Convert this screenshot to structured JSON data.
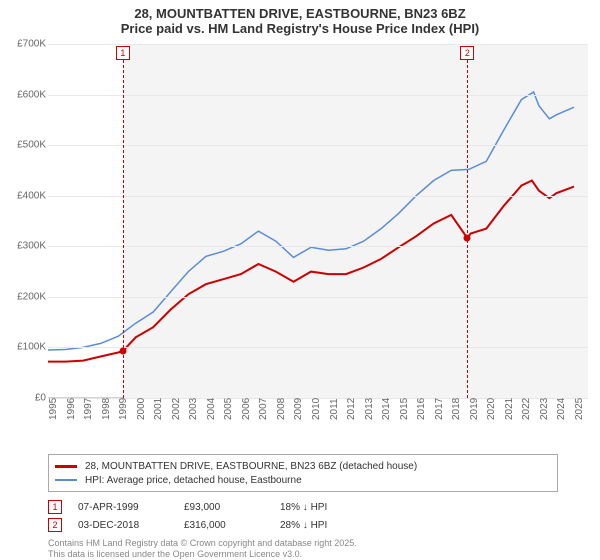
{
  "title_line1": "28, MOUNTBATTEN DRIVE, EASTBOURNE, BN23 6BZ",
  "title_line2": "Price paid vs. HM Land Registry's House Price Index (HPI)",
  "chart": {
    "type": "line",
    "background_color": "#ffffff",
    "index_band_color": "#f4f4f4",
    "grid_color": "#e8e8e8",
    "x_range": [
      1995,
      2025.8
    ],
    "x_ticks": [
      1995,
      1996,
      1997,
      1998,
      1999,
      2000,
      2001,
      2002,
      2003,
      2004,
      2005,
      2006,
      2007,
      2008,
      2009,
      2010,
      2011,
      2012,
      2013,
      2014,
      2015,
      2016,
      2017,
      2018,
      2019,
      2020,
      2021,
      2022,
      2023,
      2024,
      2025
    ],
    "ylim": [
      0,
      700
    ],
    "y_ticks": [
      0,
      100,
      200,
      300,
      400,
      500,
      600,
      700
    ],
    "y_tick_labels": [
      "£0",
      "£100K",
      "£200K",
      "£300K",
      "£400K",
      "£500K",
      "£600K",
      "£700K"
    ],
    "index_band_start": 1999.27,
    "price_paid": {
      "color": "#cc0000",
      "line_width": 2,
      "data": [
        [
          1995,
          72
        ],
        [
          1996,
          72
        ],
        [
          1997,
          74
        ],
        [
          1998,
          82
        ],
        [
          1999,
          90
        ],
        [
          1999.27,
          93
        ],
        [
          2000,
          120
        ],
        [
          2001,
          140
        ],
        [
          2002,
          175
        ],
        [
          2003,
          205
        ],
        [
          2004,
          225
        ],
        [
          2005,
          235
        ],
        [
          2006,
          245
        ],
        [
          2007,
          265
        ],
        [
          2008,
          250
        ],
        [
          2009,
          230
        ],
        [
          2010,
          250
        ],
        [
          2011,
          245
        ],
        [
          2012,
          245
        ],
        [
          2013,
          258
        ],
        [
          2014,
          275
        ],
        [
          2015,
          298
        ],
        [
          2016,
          320
        ],
        [
          2017,
          345
        ],
        [
          2018,
          362
        ],
        [
          2018.92,
          316
        ],
        [
          2019.1,
          325
        ],
        [
          2020,
          335
        ],
        [
          2021,
          380
        ],
        [
          2022,
          420
        ],
        [
          2022.6,
          430
        ],
        [
          2023,
          410
        ],
        [
          2023.6,
          395
        ],
        [
          2024,
          405
        ],
        [
          2025,
          418
        ]
      ]
    },
    "hpi": {
      "color": "#5b8dd6",
      "line_width": 1.5,
      "data": [
        [
          1995,
          95
        ],
        [
          1996,
          96
        ],
        [
          1997,
          100
        ],
        [
          1998,
          108
        ],
        [
          1999,
          122
        ],
        [
          2000,
          148
        ],
        [
          2001,
          170
        ],
        [
          2002,
          210
        ],
        [
          2003,
          250
        ],
        [
          2004,
          280
        ],
        [
          2005,
          290
        ],
        [
          2006,
          305
        ],
        [
          2007,
          330
        ],
        [
          2008,
          310
        ],
        [
          2009,
          278
        ],
        [
          2010,
          298
        ],
        [
          2011,
          292
        ],
        [
          2012,
          295
        ],
        [
          2013,
          310
        ],
        [
          2014,
          335
        ],
        [
          2015,
          365
        ],
        [
          2016,
          400
        ],
        [
          2017,
          430
        ],
        [
          2018,
          450
        ],
        [
          2019,
          452
        ],
        [
          2020,
          468
        ],
        [
          2021,
          530
        ],
        [
          2022,
          590
        ],
        [
          2022.7,
          605
        ],
        [
          2023,
          578
        ],
        [
          2023.6,
          552
        ],
        [
          2024,
          560
        ],
        [
          2025,
          575
        ]
      ]
    },
    "markers": [
      {
        "n": "1",
        "x": 1999.27,
        "price_y": 93
      },
      {
        "n": "2",
        "x": 2018.92,
        "price_y": 316
      }
    ]
  },
  "legend": {
    "price_paid": "28, MOUNTBATTEN DRIVE, EASTBOURNE, BN23 6BZ (detached house)",
    "hpi": "HPI: Average price, detached house, Eastbourne"
  },
  "sales": [
    {
      "n": "1",
      "date": "07-APR-1999",
      "price": "£93,000",
      "pct": "18% ↓ HPI"
    },
    {
      "n": "2",
      "date": "03-DEC-2018",
      "price": "£316,000",
      "pct": "28% ↓ HPI"
    }
  ],
  "footer_line1": "Contains HM Land Registry data © Crown copyright and database right 2025.",
  "footer_line2": "This data is licensed under the Open Government Licence v3.0."
}
